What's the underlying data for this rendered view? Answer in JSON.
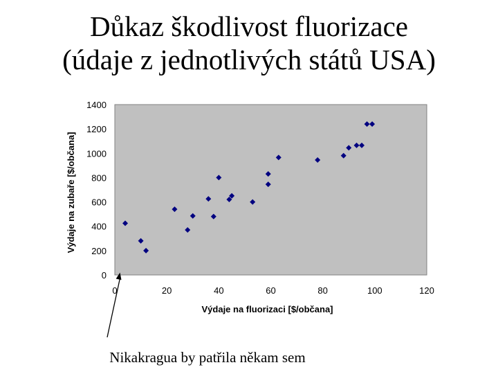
{
  "title": {
    "line1": "Důkaz škodlivost fluorizace",
    "line2": "(údaje z jednotlivých států USA)"
  },
  "annotation": "Nikakragua by patřila někam sem",
  "colors": {
    "plot_bg": "#c0c0c0",
    "marker": "#000080"
  },
  "chart_data": {
    "type": "scatter",
    "xlabel": "Výdaje na fluorizaci [$/občana]",
    "ylabel": "Výdaje na zubaře [$/občana]",
    "xlim": [
      0,
      120
    ],
    "ylim": [
      0,
      1400
    ],
    "xticks": [
      0,
      20,
      40,
      60,
      80,
      100,
      120
    ],
    "yticks": [
      0,
      200,
      400,
      600,
      800,
      1000,
      1200,
      1400
    ],
    "grid": false,
    "points": [
      {
        "x": 4,
        "y": 425
      },
      {
        "x": 10,
        "y": 280
      },
      {
        "x": 12,
        "y": 200
      },
      {
        "x": 23,
        "y": 540
      },
      {
        "x": 28,
        "y": 370
      },
      {
        "x": 30,
        "y": 485
      },
      {
        "x": 36,
        "y": 625
      },
      {
        "x": 38,
        "y": 480
      },
      {
        "x": 40,
        "y": 800
      },
      {
        "x": 44,
        "y": 620
      },
      {
        "x": 45,
        "y": 650
      },
      {
        "x": 53,
        "y": 600
      },
      {
        "x": 59,
        "y": 745
      },
      {
        "x": 59,
        "y": 830
      },
      {
        "x": 63,
        "y": 965
      },
      {
        "x": 78,
        "y": 945
      },
      {
        "x": 88,
        "y": 980
      },
      {
        "x": 90,
        "y": 1045
      },
      {
        "x": 93,
        "y": 1065
      },
      {
        "x": 95,
        "y": 1065
      },
      {
        "x": 97,
        "y": 1240
      },
      {
        "x": 99,
        "y": 1240
      }
    ],
    "annotation_arrow_target": {
      "x": 2,
      "y": 20
    }
  }
}
